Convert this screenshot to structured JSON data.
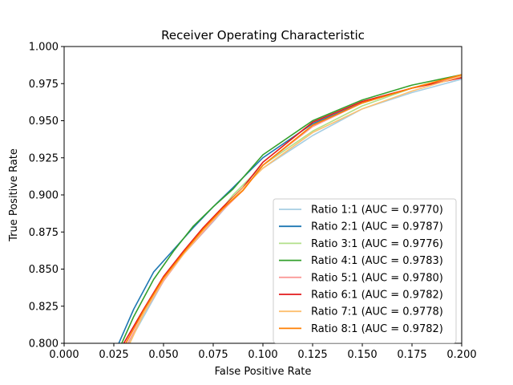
{
  "chart_data": {
    "type": "line",
    "title": "Receiver Operating Characteristic",
    "xlabel": "False Positive Rate",
    "ylabel": "True Positive Rate",
    "xlim": [
      0.0,
      0.2
    ],
    "ylim": [
      0.8,
      1.0
    ],
    "x_ticks": [
      "0.000",
      "0.025",
      "0.050",
      "0.075",
      "0.100",
      "0.125",
      "0.150",
      "0.175",
      "0.200"
    ],
    "y_ticks": [
      "0.800",
      "0.825",
      "0.850",
      "0.875",
      "0.900",
      "0.925",
      "0.950",
      "0.975",
      "1.000"
    ],
    "grid": false,
    "legend_position": "lower-right",
    "series": [
      {
        "name": "Ratio 1:1 (AUC = 0.9770)",
        "color": "#a6cee3",
        "x": [
          0.0325,
          0.04,
          0.05,
          0.06,
          0.075,
          0.09,
          0.1,
          0.125,
          0.15,
          0.175,
          0.2
        ],
        "y": [
          0.8,
          0.818,
          0.842,
          0.86,
          0.882,
          0.905,
          0.918,
          0.94,
          0.958,
          0.969,
          0.978
        ]
      },
      {
        "name": "Ratio 2:1 (AUC = 0.9787)",
        "color": "#1f78b4",
        "x": [
          0.0275,
          0.035,
          0.045,
          0.055,
          0.065,
          0.075,
          0.085,
          0.1,
          0.125,
          0.15,
          0.175,
          0.2
        ],
        "y": [
          0.8,
          0.823,
          0.848,
          0.863,
          0.878,
          0.892,
          0.905,
          0.925,
          0.948,
          0.962,
          0.972,
          0.98
        ]
      },
      {
        "name": "Ratio 3:1 (AUC = 0.9776)",
        "color": "#b2df8a",
        "x": [
          0.033,
          0.04,
          0.05,
          0.06,
          0.07,
          0.085,
          0.1,
          0.125,
          0.15,
          0.175,
          0.2
        ],
        "y": [
          0.8,
          0.82,
          0.843,
          0.86,
          0.875,
          0.9,
          0.92,
          0.943,
          0.96,
          0.972,
          0.98
        ]
      },
      {
        "name": "Ratio 4:1 (AUC = 0.9783)",
        "color": "#33a02c",
        "x": [
          0.029,
          0.035,
          0.045,
          0.055,
          0.065,
          0.075,
          0.085,
          0.1,
          0.125,
          0.15,
          0.175,
          0.2
        ],
        "y": [
          0.8,
          0.818,
          0.843,
          0.862,
          0.879,
          0.892,
          0.904,
          0.927,
          0.95,
          0.964,
          0.974,
          0.981
        ]
      },
      {
        "name": "Ratio 5:1 (AUC = 0.9780)",
        "color": "#fb9a99",
        "x": [
          0.032,
          0.04,
          0.05,
          0.06,
          0.07,
          0.08,
          0.09,
          0.1,
          0.125,
          0.15,
          0.175,
          0.2
        ],
        "y": [
          0.8,
          0.82,
          0.842,
          0.86,
          0.875,
          0.89,
          0.903,
          0.92,
          0.946,
          0.962,
          0.972,
          0.98
        ]
      },
      {
        "name": "Ratio 6:1 (AUC = 0.9782)",
        "color": "#e31a1c",
        "x": [
          0.03,
          0.04,
          0.05,
          0.06,
          0.07,
          0.08,
          0.09,
          0.1,
          0.125,
          0.15,
          0.175,
          0.2
        ],
        "y": [
          0.8,
          0.823,
          0.845,
          0.862,
          0.878,
          0.892,
          0.905,
          0.922,
          0.949,
          0.963,
          0.972,
          0.979
        ]
      },
      {
        "name": "Ratio 7:1 (AUC = 0.9778)",
        "color": "#fdbf6f",
        "x": [
          0.033,
          0.04,
          0.05,
          0.06,
          0.07,
          0.085,
          0.1,
          0.125,
          0.15,
          0.175,
          0.2
        ],
        "y": [
          0.8,
          0.82,
          0.843,
          0.86,
          0.876,
          0.898,
          0.918,
          0.942,
          0.958,
          0.97,
          0.98
        ]
      },
      {
        "name": "Ratio 8:1 (AUC = 0.9782)",
        "color": "#ff7f00",
        "x": [
          0.031,
          0.04,
          0.05,
          0.06,
          0.07,
          0.08,
          0.09,
          0.1,
          0.125,
          0.15,
          0.175,
          0.2
        ],
        "y": [
          0.8,
          0.822,
          0.844,
          0.861,
          0.877,
          0.891,
          0.903,
          0.92,
          0.947,
          0.962,
          0.972,
          0.981
        ]
      }
    ]
  }
}
